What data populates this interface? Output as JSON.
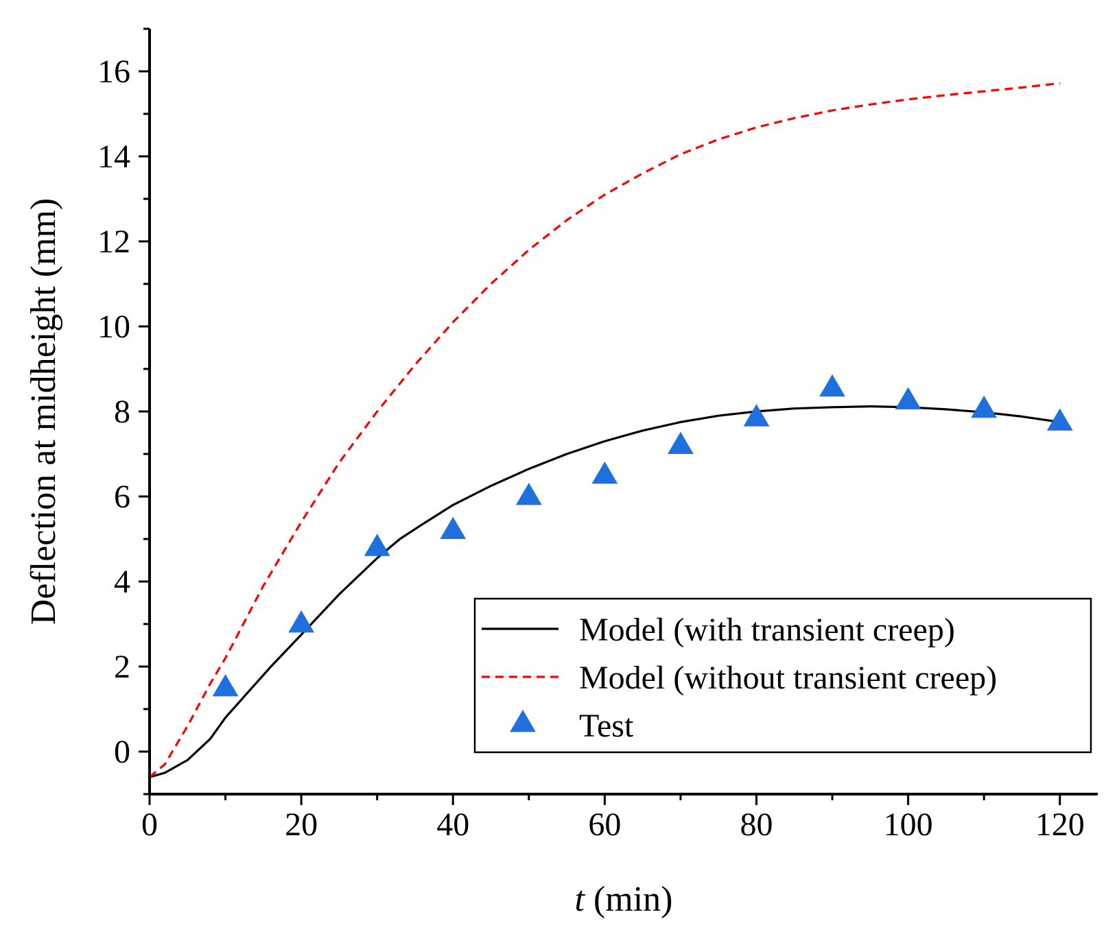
{
  "chart_data": {
    "type": "line",
    "xlabel_var": "t",
    "xlabel_unit": " (min)",
    "ylabel": "Deflection at midheight (mm)",
    "xlim": [
      0,
      125
    ],
    "ylim": [
      -1,
      17
    ],
    "x_ticks": [
      0,
      20,
      40,
      60,
      80,
      100,
      120
    ],
    "y_ticks": [
      0,
      2,
      4,
      6,
      8,
      10,
      12,
      14,
      16
    ],
    "legend_position": "bottom-right",
    "series": [
      {
        "name": "Model (with transient creep)",
        "style": "solid",
        "color": "#000000",
        "x": [
          0,
          2,
          5,
          8,
          10,
          13,
          16,
          20,
          25,
          30,
          33,
          36,
          40,
          45,
          50,
          55,
          60,
          65,
          70,
          75,
          80,
          85,
          90,
          95,
          100,
          105,
          110,
          115,
          120
        ],
        "y": [
          -0.6,
          -0.5,
          -0.2,
          0.3,
          0.8,
          1.4,
          2.0,
          2.75,
          3.7,
          4.55,
          5.0,
          5.35,
          5.8,
          6.25,
          6.65,
          7.0,
          7.3,
          7.55,
          7.75,
          7.9,
          8.0,
          8.07,
          8.1,
          8.12,
          8.1,
          8.05,
          7.98,
          7.88,
          7.75
        ]
      },
      {
        "name": "Model (without transient creep)",
        "style": "dashed",
        "color": "#ff0000",
        "x": [
          0,
          2,
          5,
          8,
          10,
          15,
          20,
          25,
          30,
          35,
          40,
          45,
          50,
          55,
          60,
          65,
          70,
          75,
          80,
          85,
          90,
          95,
          100,
          105,
          110,
          115,
          120
        ],
        "y": [
          -0.6,
          -0.3,
          0.6,
          1.6,
          2.2,
          3.9,
          5.4,
          6.8,
          8.0,
          9.1,
          10.1,
          11.0,
          11.8,
          12.5,
          13.1,
          13.6,
          14.05,
          14.4,
          14.68,
          14.9,
          15.08,
          15.22,
          15.34,
          15.44,
          15.53,
          15.62,
          15.72
        ]
      },
      {
        "name": "Test",
        "style": "markers",
        "marker": "triangle",
        "color": "#1f6fdd",
        "x": [
          10,
          20,
          30,
          40,
          50,
          60,
          70,
          80,
          90,
          100,
          110,
          120
        ],
        "y": [
          1.5,
          3.0,
          4.8,
          5.2,
          6.0,
          6.5,
          7.2,
          7.85,
          8.55,
          8.25,
          8.05,
          7.75
        ]
      }
    ]
  }
}
